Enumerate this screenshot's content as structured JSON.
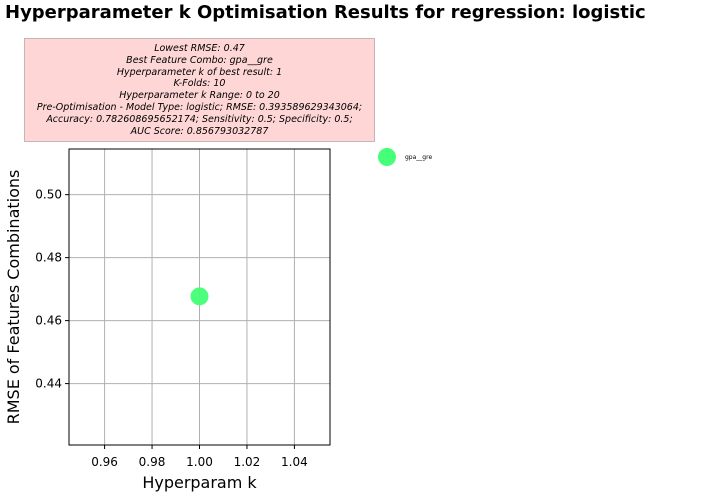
{
  "title": "Hyperparameter k Optimisation Results for regression: logistic",
  "info_lines": [
    "Lowest RMSE: 0.47",
    "Best Feature Combo: gpa__gre",
    "Hyperparameter k of best result: 1",
    "K-Folds: 10",
    "Hyperparameter k Range: 0 to 20",
    "Pre-Optimisation - Model Type: logistic; RMSE: 0.393589629343064;",
    "Accuracy: 0.782608695652174; Sensitivity: 0.5; Specificity: 0.5;",
    "AUC Score: 0.856793032787"
  ],
  "chart_data": {
    "type": "scatter",
    "title": "Hyperparameter k Optimisation Results for regression: logistic",
    "xlabel": "Hyperparam k",
    "ylabel": "RMSE of Features Combinations",
    "xlim": [
      0.945,
      1.055
    ],
    "ylim": [
      0.4205,
      0.5145
    ],
    "xticks": [
      0.96,
      0.98,
      1.0,
      1.02,
      1.04
    ],
    "xtick_labels": [
      "0.96",
      "0.98",
      "1.00",
      "1.02",
      "1.04"
    ],
    "yticks": [
      0.44,
      0.46,
      0.48,
      0.5
    ],
    "ytick_labels": [
      "0.44",
      "0.46",
      "0.48",
      "0.50"
    ],
    "grid": true,
    "legend_position": "outside right",
    "series": [
      {
        "name": "gpa__gre",
        "color": "#44ff77",
        "points": [
          {
            "x": 1.0,
            "y": 0.4677
          }
        ]
      }
    ]
  }
}
